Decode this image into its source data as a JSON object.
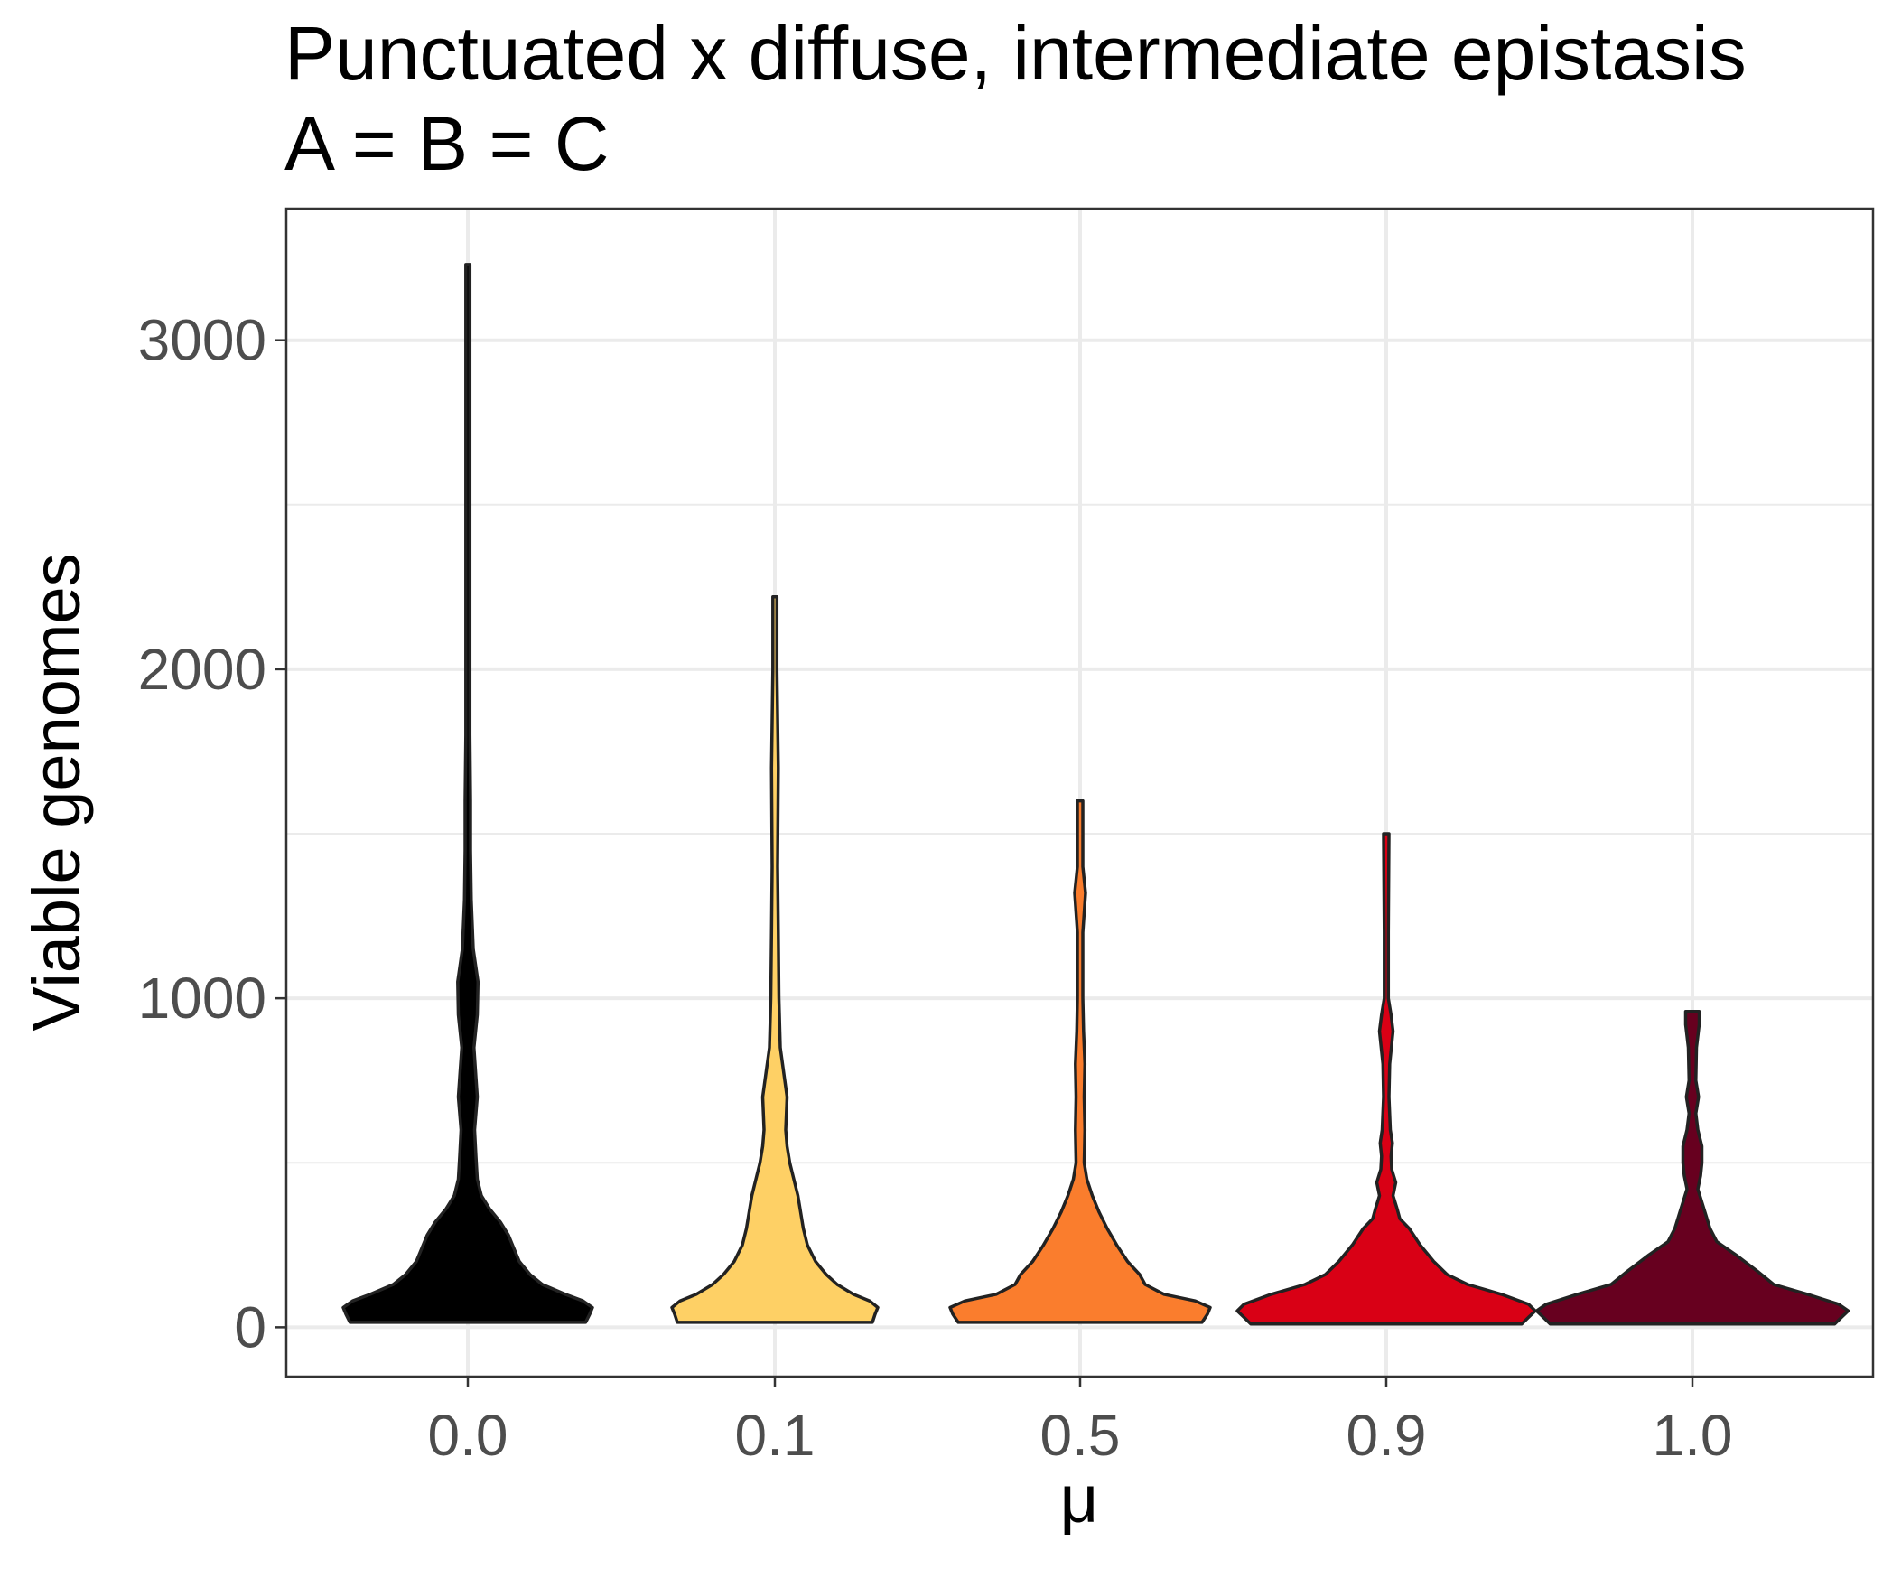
{
  "chart_data": {
    "type": "violin",
    "title": "Punctuated x diffuse, intermediate epistasis",
    "subtitle": "A = B = C",
    "xlabel": "μ",
    "ylabel": "Viable genomes",
    "categories": [
      "0.0",
      "0.1",
      "0.5",
      "0.9",
      "1.0"
    ],
    "y_ticks": [
      0,
      1000,
      2000,
      3000
    ],
    "ylim": [
      -150,
      3400
    ],
    "grid": true,
    "legend": "none",
    "series": [
      {
        "category": "0.0",
        "color": "#000000",
        "min": 15,
        "max": 3230,
        "profile": [
          [
            15,
            0.87
          ],
          [
            40,
            0.9
          ],
          [
            60,
            0.92
          ],
          [
            80,
            0.85
          ],
          [
            100,
            0.72
          ],
          [
            130,
            0.55
          ],
          [
            160,
            0.46
          ],
          [
            200,
            0.38
          ],
          [
            240,
            0.34
          ],
          [
            280,
            0.3
          ],
          [
            320,
            0.24
          ],
          [
            360,
            0.16
          ],
          [
            400,
            0.1
          ],
          [
            450,
            0.07
          ],
          [
            520,
            0.06
          ],
          [
            600,
            0.05
          ],
          [
            700,
            0.07
          ],
          [
            760,
            0.06
          ],
          [
            850,
            0.045
          ],
          [
            950,
            0.07
          ],
          [
            1050,
            0.075
          ],
          [
            1150,
            0.04
          ],
          [
            1300,
            0.025
          ],
          [
            1450,
            0.02
          ],
          [
            1600,
            0.02
          ],
          [
            1800,
            0.015
          ],
          [
            2200,
            0.015
          ],
          [
            2800,
            0.015
          ],
          [
            3230,
            0.015
          ]
        ]
      },
      {
        "category": "0.1",
        "color": "#fed065",
        "min": 15,
        "max": 2220,
        "profile": [
          [
            15,
            0.72
          ],
          [
            40,
            0.74
          ],
          [
            60,
            0.76
          ],
          [
            80,
            0.7
          ],
          [
            100,
            0.58
          ],
          [
            130,
            0.46
          ],
          [
            160,
            0.38
          ],
          [
            200,
            0.3
          ],
          [
            250,
            0.24
          ],
          [
            300,
            0.21
          ],
          [
            350,
            0.19
          ],
          [
            400,
            0.17
          ],
          [
            450,
            0.14
          ],
          [
            500,
            0.11
          ],
          [
            550,
            0.09
          ],
          [
            600,
            0.08
          ],
          [
            700,
            0.09
          ],
          [
            760,
            0.07
          ],
          [
            850,
            0.04
          ],
          [
            1000,
            0.03
          ],
          [
            1200,
            0.025
          ],
          [
            1400,
            0.02
          ],
          [
            1700,
            0.025
          ],
          [
            2000,
            0.015
          ],
          [
            2220,
            0.015
          ]
        ]
      },
      {
        "category": "0.5",
        "color": "#fa7d2d",
        "min": 15,
        "max": 1600,
        "profile": [
          [
            15,
            0.9
          ],
          [
            40,
            0.94
          ],
          [
            60,
            0.96
          ],
          [
            80,
            0.85
          ],
          [
            100,
            0.62
          ],
          [
            130,
            0.48
          ],
          [
            160,
            0.44
          ],
          [
            200,
            0.35
          ],
          [
            250,
            0.27
          ],
          [
            300,
            0.2
          ],
          [
            350,
            0.14
          ],
          [
            400,
            0.09
          ],
          [
            450,
            0.05
          ],
          [
            500,
            0.03
          ],
          [
            600,
            0.035
          ],
          [
            700,
            0.03
          ],
          [
            800,
            0.035
          ],
          [
            900,
            0.025
          ],
          [
            1000,
            0.02
          ],
          [
            1200,
            0.02
          ],
          [
            1320,
            0.04
          ],
          [
            1400,
            0.02
          ],
          [
            1500,
            0.02
          ],
          [
            1600,
            0.02
          ]
        ]
      },
      {
        "category": "0.9",
        "color": "#d90015",
        "min": 10,
        "max": 1500,
        "profile": [
          [
            10,
            1.0
          ],
          [
            30,
            1.05
          ],
          [
            50,
            1.1
          ],
          [
            70,
            1.05
          ],
          [
            100,
            0.85
          ],
          [
            130,
            0.6
          ],
          [
            160,
            0.45
          ],
          [
            200,
            0.35
          ],
          [
            250,
            0.25
          ],
          [
            300,
            0.17
          ],
          [
            330,
            0.1
          ],
          [
            360,
            0.08
          ],
          [
            400,
            0.05
          ],
          [
            440,
            0.07
          ],
          [
            480,
            0.04
          ],
          [
            520,
            0.035
          ],
          [
            560,
            0.045
          ],
          [
            600,
            0.03
          ],
          [
            700,
            0.02
          ],
          [
            800,
            0.025
          ],
          [
            900,
            0.05
          ],
          [
            950,
            0.035
          ],
          [
            1000,
            0.015
          ],
          [
            1200,
            0.015
          ],
          [
            1500,
            0.02
          ]
        ]
      },
      {
        "category": "1.0",
        "color": "#67001f",
        "min": 10,
        "max": 960,
        "profile": [
          [
            10,
            1.05
          ],
          [
            30,
            1.1
          ],
          [
            50,
            1.15
          ],
          [
            70,
            1.08
          ],
          [
            100,
            0.85
          ],
          [
            130,
            0.6
          ],
          [
            170,
            0.48
          ],
          [
            220,
            0.32
          ],
          [
            260,
            0.18
          ],
          [
            300,
            0.13
          ],
          [
            340,
            0.1
          ],
          [
            380,
            0.07
          ],
          [
            420,
            0.04
          ],
          [
            460,
            0.06
          ],
          [
            500,
            0.07
          ],
          [
            550,
            0.07
          ],
          [
            600,
            0.04
          ],
          [
            650,
            0.025
          ],
          [
            700,
            0.045
          ],
          [
            750,
            0.025
          ],
          [
            850,
            0.03
          ],
          [
            920,
            0.05
          ],
          [
            960,
            0.05
          ]
        ]
      }
    ]
  }
}
